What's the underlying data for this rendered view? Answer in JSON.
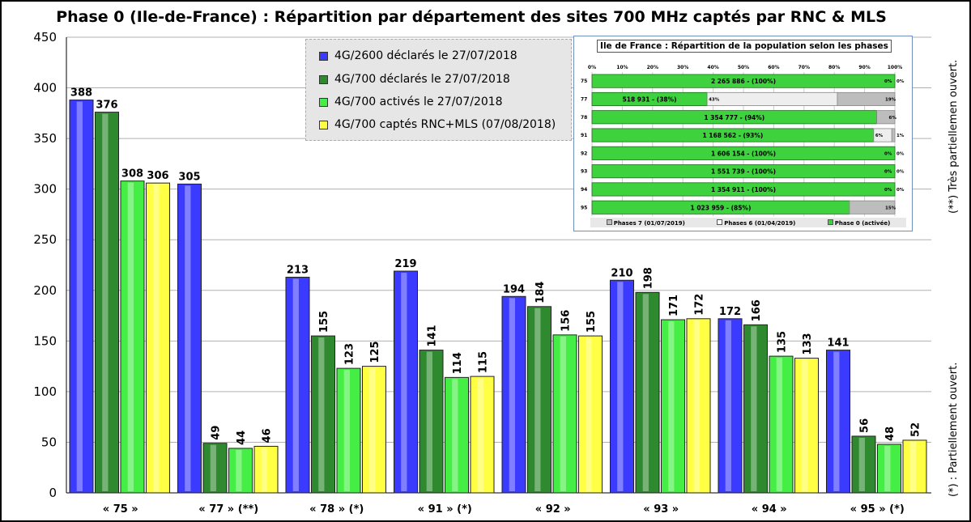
{
  "chart_data": [
    {
      "type": "bar",
      "title": "Phase 0 (Ile-de-France) : Répartition par département des sites 700 MHz captés par RNC & MLS",
      "categories": [
        "« 75 »",
        "« 77 » (**)",
        "« 78 » (*)",
        "« 91 » (*)",
        "« 92 »",
        "« 93 »",
        "« 94 »",
        "« 95 » (*)"
      ],
      "ylim": [
        0,
        450
      ],
      "yticks": [
        0,
        50,
        100,
        150,
        200,
        250,
        300,
        350,
        400,
        450
      ],
      "grid": true,
      "legend_position": "top-center",
      "series": [
        {
          "name": "4G/2600 déclarés le 27/07/2018",
          "color": "#3b3bff",
          "values": [
            388,
            305,
            213,
            219,
            194,
            210,
            172,
            141
          ]
        },
        {
          "name": "4G/700 déclarés le 27/07/2018",
          "color": "#2f8a2f",
          "values": [
            376,
            49,
            155,
            141,
            184,
            198,
            166,
            56
          ]
        },
        {
          "name": "4G/700 activés le 27/07/2018",
          "color": "#44ee44",
          "values": [
            308,
            44,
            123,
            114,
            156,
            171,
            135,
            48
          ]
        },
        {
          "name": "4G/700 captés RNC+MLS (07/08/2018)",
          "color": "#ffff44",
          "values": [
            306,
            46,
            125,
            115,
            155,
            172,
            133,
            52
          ]
        }
      ]
    },
    {
      "type": "bar",
      "orientation": "horizontal-stacked",
      "title": "Ile de France : Répartition de la population selon les phases",
      "categories": [
        "75",
        "77",
        "78",
        "91",
        "92",
        "93",
        "94",
        "95"
      ],
      "xticks": [
        "0%",
        "10%",
        "20%",
        "30%",
        "40%",
        "50%",
        "60%",
        "70%",
        "80%",
        "90%",
        "100%"
      ],
      "series": [
        {
          "name": "Phase 0 (activée)",
          "color": "#3fd23f",
          "values": [
            100,
            38,
            94,
            93,
            100,
            100,
            100,
            85
          ],
          "labels": [
            "2 265 886 - (100%)",
            "518 931 - (38%)",
            "1 354 777 - (94%)",
            "1 168 562 - (93%)",
            "1 606 154 - (100%)",
            "1 551 739 - (100%)",
            "1 354 911 - (100%)",
            "1 023 959 - (85%)"
          ]
        },
        {
          "name": "Phases 6 (01/04/2019)",
          "color": "#eeeeee",
          "values": [
            0,
            43,
            0,
            6,
            0,
            0,
            0,
            0
          ]
        },
        {
          "name": "Phases 7 (01/07/2019)",
          "color": "#bdbdbd",
          "values": [
            0,
            19,
            6,
            1,
            0,
            0,
            0,
            15
          ]
        }
      ]
    }
  ],
  "notes": {
    "very_partial": "(**) Très partiellemen ouvert.",
    "partial": "(*) : Partiellement ouvert."
  }
}
